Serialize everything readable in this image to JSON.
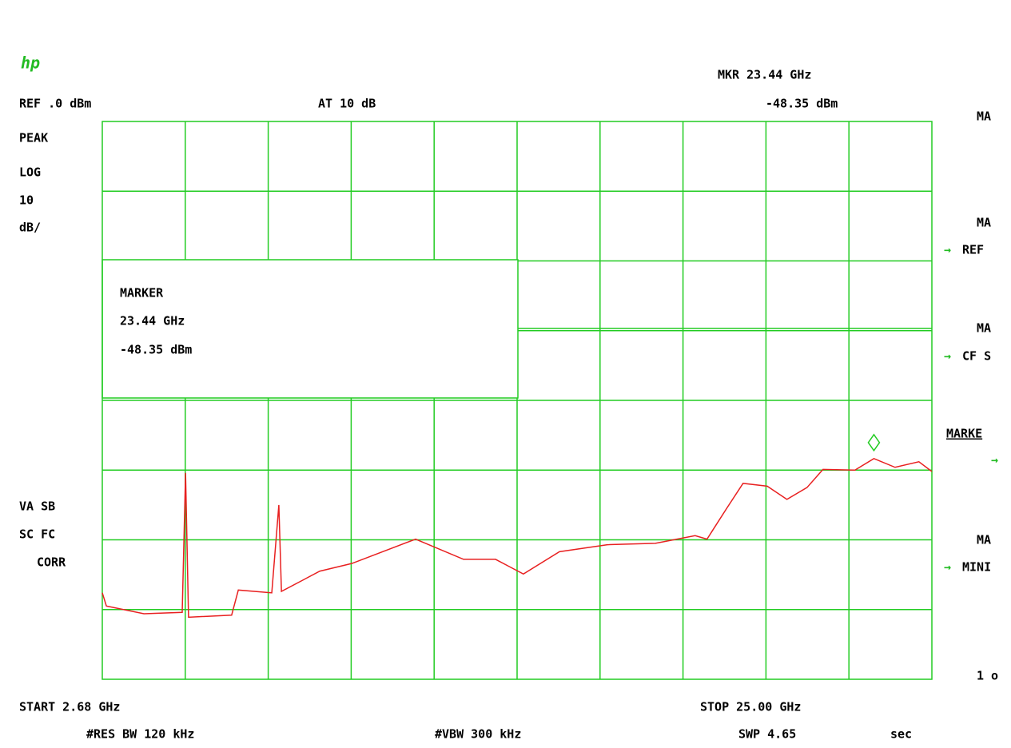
{
  "chart_data": {
    "type": "line",
    "marker_readout": {
      "title": "MKR 23.44 GHz",
      "amplitude": "-48.35 dBm"
    },
    "ref_level": "REF .0  dBm",
    "attenuation": "AT 10  dB",
    "left_labels": [
      "PEAK",
      "LOG",
      "10",
      "dB/"
    ],
    "status_labels": [
      "VA SB",
      "SC FC",
      "CORR"
    ],
    "marker_box": [
      "MARKER",
      "23.44 GHz",
      "-48.35 dBm"
    ],
    "start_label": "START 2.68 GHz",
    "stop_label": "STOP 25.00  GHz",
    "res_bw": "#RES BW 120  kHz",
    "vbw": "#VBW 300  kHz",
    "sweep": "SWP 4.65",
    "sweep_unit": "sec",
    "softkeys": [
      "MA",
      "MA",
      "REF",
      "MA",
      "CF S",
      "MARKE",
      "MA",
      "MINI",
      "1 o"
    ],
    "xlim": [
      2.68,
      25.0
    ],
    "ylim": [
      -80,
      0
    ],
    "grid": true,
    "marker": {
      "x": 23.44,
      "y": -48.35
    },
    "series": [
      {
        "name": "trace",
        "color": "#e82020",
        "x": [
          2.68,
          2.79,
          3.8,
          4.83,
          4.92,
          5.0,
          6.16,
          6.34,
          7.24,
          7.43,
          7.5,
          8.53,
          9.39,
          11.11,
          12.4,
          13.26,
          14.01,
          14.98,
          16.27,
          17.56,
          18.63,
          18.95,
          19.49,
          19.92,
          20.57,
          21.1,
          21.64,
          22.07,
          22.93,
          23.44,
          24.01,
          24.65,
          25.0
        ],
        "values": [
          -67.6,
          -69.5,
          -70.6,
          -70.4,
          -50.4,
          -71.1,
          -70.8,
          -67.2,
          -67.6,
          -55.0,
          -67.4,
          -64.5,
          -63.4,
          -59.9,
          -62.8,
          -62.8,
          -64.9,
          -61.7,
          -60.7,
          -60.5,
          -59.4,
          -59.9,
          -55.4,
          -51.9,
          -52.3,
          -54.2,
          -52.5,
          -49.9,
          -50.0,
          -48.35,
          -49.6,
          -48.8,
          -50.2
        ]
      }
    ]
  }
}
